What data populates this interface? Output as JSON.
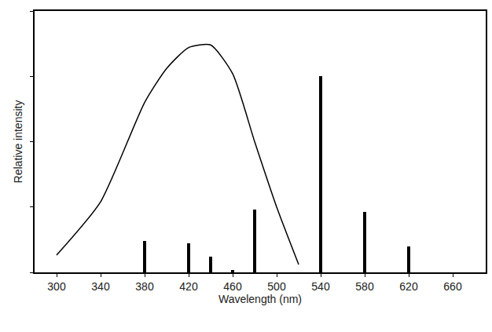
{
  "chart_data": {
    "type": "line",
    "x_label": "Wavelength (nm)",
    "y_label": "Relative intensity",
    "series": [
      {
        "type": "line",
        "color": "#000000",
        "x": [
          300,
          340,
          380,
          400,
          420,
          440,
          460,
          480,
          500,
          520
        ],
        "values": [
          6.6,
          27,
          65,
          78,
          86,
          87,
          76,
          50,
          25,
          3
        ]
      },
      {
        "type": "bar",
        "color": "#000000",
        "x": [
          380,
          420,
          440,
          460,
          480,
          540,
          580,
          620
        ],
        "values": [
          12,
          11,
          6,
          1,
          24,
          75,
          23,
          10
        ]
      }
    ],
    "xlim": [
      280,
      690
    ],
    "xticks": [
      300,
      340,
      380,
      420,
      460,
      500,
      540,
      580,
      620,
      660
    ],
    "ylim": [
      0,
      100
    ],
    "yticks": [
      0,
      25,
      50,
      75,
      100
    ],
    "tick_labels": "x",
    "grid": false
  }
}
